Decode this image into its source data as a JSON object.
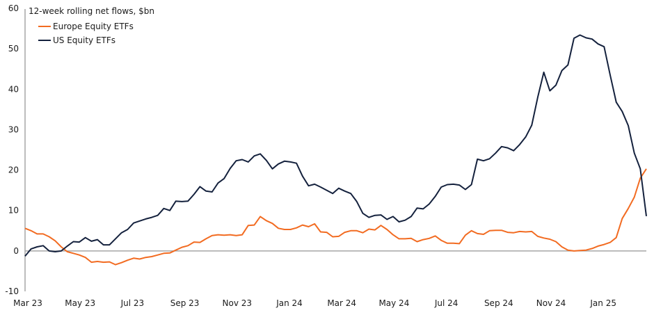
{
  "chart_data": {
    "type": "line",
    "title": "12-week rolling net flows, $bn",
    "xlabel": "",
    "ylabel": "",
    "ylim": [
      -10,
      60
    ],
    "yticks": [
      60,
      50,
      40,
      30,
      20,
      10,
      0,
      -10
    ],
    "xtick_labels": [
      "Mar 23",
      "May 23",
      "Jul 23",
      "Sep 23",
      "Nov 23",
      "Jan 24",
      "Mar 24",
      "May 24",
      "Jul 24",
      "Sep 24",
      "Nov 24",
      "Jan 25"
    ],
    "x_frequency": "weekly",
    "x_start": "Mar 23",
    "grid": false,
    "zero_line": true,
    "legend_position": "top-left",
    "series": [
      {
        "name": "Europe Equity ETFs",
        "color": "#F26B21",
        "values": [
          5.6,
          5.0,
          4.2,
          4.2,
          3.5,
          2.5,
          1.0,
          -0.2,
          -0.6,
          -1.0,
          -1.6,
          -2.8,
          -2.6,
          -2.8,
          -2.7,
          -3.4,
          -2.9,
          -2.3,
          -1.8,
          -2.0,
          -1.6,
          -1.4,
          -1.0,
          -0.6,
          -0.5,
          0.2,
          0.9,
          1.3,
          2.2,
          2.1,
          3.0,
          3.8,
          4.0,
          3.9,
          4.0,
          3.8,
          4.0,
          6.3,
          6.4,
          8.5,
          7.5,
          6.8,
          5.6,
          5.3,
          5.3,
          5.7,
          6.4,
          6.0,
          6.7,
          4.7,
          4.6,
          3.5,
          3.6,
          4.6,
          5.0,
          5.0,
          4.5,
          5.4,
          5.2,
          6.3,
          5.3,
          4.0,
          3.0,
          3.0,
          3.1,
          2.3,
          2.8,
          3.1,
          3.7,
          2.6,
          1.9,
          1.9,
          1.8,
          3.9,
          5.0,
          4.3,
          4.1,
          5.0,
          5.1,
          5.1,
          4.6,
          4.5,
          4.8,
          4.7,
          4.8,
          3.6,
          3.2,
          2.9,
          2.3,
          1.0,
          0.2,
          0.0,
          0.1,
          0.2,
          0.6,
          1.2,
          1.6,
          2.1,
          3.3,
          8.0,
          10.5,
          13.3,
          18.0,
          20.3
        ]
      },
      {
        "name": "US Equity ETFs",
        "color": "#14213D",
        "values": [
          -1.3,
          0.5,
          1.0,
          1.3,
          0.0,
          -0.2,
          0.0,
          1.2,
          2.3,
          2.2,
          3.3,
          2.4,
          2.8,
          1.5,
          1.5,
          3.0,
          4.5,
          5.3,
          6.9,
          7.4,
          7.9,
          8.3,
          8.8,
          10.5,
          10.0,
          12.3,
          12.2,
          12.3,
          14.0,
          15.9,
          14.8,
          14.6,
          16.8,
          17.9,
          20.4,
          22.3,
          22.6,
          22.0,
          23.5,
          24.0,
          22.4,
          20.3,
          21.5,
          22.2,
          22.0,
          21.7,
          18.5,
          16.1,
          16.5,
          15.8,
          15.0,
          14.2,
          15.5,
          14.8,
          14.2,
          12.2,
          9.3,
          8.3,
          8.8,
          8.9,
          7.8,
          8.5,
          7.2,
          7.6,
          8.5,
          10.6,
          10.4,
          11.6,
          13.5,
          15.8,
          16.4,
          16.5,
          16.3,
          15.2,
          16.4,
          22.7,
          22.3,
          22.8,
          24.2,
          25.8,
          25.5,
          24.8,
          26.3,
          28.2,
          31.1,
          38.0,
          44.2,
          39.6,
          41.0,
          44.6,
          46.0,
          52.6,
          53.4,
          52.7,
          52.4,
          51.2,
          50.5,
          43.5,
          36.8,
          34.5,
          31.0,
          24.2,
          20.3,
          8.6
        ]
      }
    ]
  },
  "axis_color": "#A6A6A6"
}
